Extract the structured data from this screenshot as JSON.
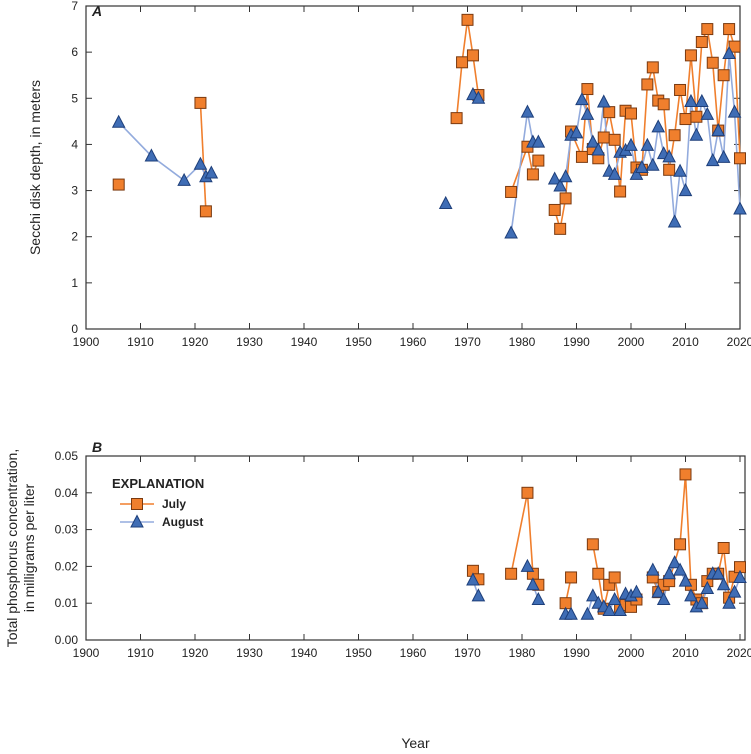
{
  "chart_data": [
    {
      "type": "line",
      "panel_label": "A",
      "ylabel": "Secchi disk depth, in meters",
      "xlabel": "",
      "xlim": [
        1900,
        2020
      ],
      "ylim": [
        0,
        7
      ],
      "xticks": [
        1900,
        1910,
        1920,
        1930,
        1940,
        1950,
        1960,
        1970,
        1980,
        1990,
        2000,
        2010,
        2020
      ],
      "yticks": [
        0,
        1,
        2,
        3,
        4,
        5,
        6,
        7
      ],
      "series": [
        {
          "name": "July",
          "color": "#F07F2D",
          "marker": "square",
          "segments": [
            [
              [
                1906,
                3.13
              ]
            ],
            [
              [
                1921,
                4.9
              ],
              [
                1922,
                2.55
              ]
            ],
            [
              [
                1968,
                4.57
              ],
              [
                1969,
                5.78
              ],
              [
                1970,
                6.7
              ],
              [
                1971,
                5.93
              ],
              [
                1972,
                5.07
              ]
            ],
            [
              [
                1978,
                2.97
              ],
              [
                1981,
                3.95
              ],
              [
                1982,
                3.35
              ],
              [
                1983,
                3.65
              ]
            ],
            [
              [
                1986,
                2.58
              ],
              [
                1987,
                2.17
              ],
              [
                1988,
                2.83
              ],
              [
                1989,
                4.28
              ],
              [
                1991,
                3.73
              ],
              [
                1992,
                5.2
              ],
              [
                1993,
                3.9
              ],
              [
                1994,
                3.7
              ],
              [
                1995,
                4.15
              ],
              [
                1996,
                4.7
              ],
              [
                1997,
                4.1
              ],
              [
                1998,
                2.98
              ],
              [
                1999,
                4.73
              ],
              [
                2000,
                4.67
              ],
              [
                2001,
                3.5
              ],
              [
                2002,
                3.45
              ],
              [
                2003,
                5.3
              ],
              [
                2004,
                5.67
              ],
              [
                2005,
                4.95
              ],
              [
                2006,
                4.87
              ],
              [
                2007,
                3.45
              ],
              [
                2008,
                4.2
              ],
              [
                2009,
                5.18
              ],
              [
                2010,
                4.55
              ],
              [
                2011,
                5.93
              ],
              [
                2012,
                4.6
              ],
              [
                2013,
                6.22
              ],
              [
                2014,
                6.5
              ],
              [
                2015,
                5.77
              ],
              [
                2016,
                4.3
              ],
              [
                2017,
                5.5
              ],
              [
                2018,
                6.5
              ],
              [
                2019,
                6.12
              ],
              [
                2020,
                3.7
              ]
            ]
          ]
        },
        {
          "name": "August",
          "color": "#3F6DB5",
          "marker": "triangle",
          "segments": [
            [
              [
                1906,
                4.48
              ],
              [
                1912,
                3.75
              ],
              [
                1918,
                3.22
              ],
              [
                1921,
                3.57
              ],
              [
                1922,
                3.3
              ],
              [
                1923,
                3.38
              ]
            ],
            [
              [
                1966,
                2.72
              ]
            ],
            [
              [
                1971,
                5.08
              ],
              [
                1972,
                5.0
              ]
            ],
            [
              [
                1978,
                2.08
              ],
              [
                1981,
                4.7
              ],
              [
                1982,
                4.05
              ],
              [
                1983,
                4.05
              ]
            ],
            [
              [
                1986,
                3.25
              ],
              [
                1987,
                3.1
              ],
              [
                1988,
                3.3
              ],
              [
                1989,
                4.2
              ],
              [
                1990,
                4.25
              ],
              [
                1991,
                4.97
              ],
              [
                1992,
                4.65
              ],
              [
                1993,
                4.05
              ],
              [
                1994,
                3.88
              ],
              [
                1995,
                4.92
              ],
              [
                1996,
                3.42
              ],
              [
                1997,
                3.35
              ],
              [
                1998,
                3.83
              ],
              [
                1999,
                3.87
              ],
              [
                2000,
                3.98
              ],
              [
                2001,
                3.35
              ],
              [
                2002,
                3.5
              ],
              [
                2003,
                3.98
              ],
              [
                2004,
                3.55
              ],
              [
                2005,
                4.38
              ],
              [
                2006,
                3.8
              ],
              [
                2007,
                3.73
              ],
              [
                2008,
                2.32
              ],
              [
                2009,
                3.42
              ],
              [
                2010,
                3.0
              ],
              [
                2011,
                4.93
              ],
              [
                2012,
                4.2
              ],
              [
                2013,
                4.93
              ],
              [
                2014,
                4.65
              ],
              [
                2015,
                3.65
              ],
              [
                2016,
                4.3
              ],
              [
                2017,
                3.72
              ],
              [
                2018,
                5.97
              ],
              [
                2019,
                4.7
              ],
              [
                2020,
                2.6
              ]
            ]
          ]
        }
      ]
    },
    {
      "type": "line",
      "panel_label": "B",
      "ylabel": "Total phosphorus concentration, in milligrams per liter",
      "ylabel_lines": [
        "Total phosphorus concentration,",
        "in milligrams per liter"
      ],
      "xlabel": "Year",
      "xlim": [
        1900,
        2022
      ],
      "ylim": [
        0,
        0.05
      ],
      "xticks": [
        1900,
        1910,
        1920,
        1930,
        1940,
        1950,
        1960,
        1970,
        1980,
        1990,
        2000,
        2010,
        2020
      ],
      "yticks": [
        "0.00",
        "0.01",
        "0.02",
        "0.03",
        "0.04",
        "0.05"
      ],
      "legend": {
        "title": "EXPLANATION",
        "placement": "top-left"
      },
      "series": [
        {
          "name": "July",
          "color": "#F07F2D",
          "marker": "square",
          "segments": [
            [
              [
                1971,
                0.0188
              ],
              [
                1972,
                0.0165
              ]
            ],
            [
              [
                1978,
                0.018
              ],
              [
                1981,
                0.04
              ],
              [
                1982,
                0.018
              ],
              [
                1983,
                0.015
              ]
            ],
            [
              [
                1988,
                0.01
              ],
              [
                1989,
                0.017
              ]
            ],
            [
              [
                1993,
                0.026
              ],
              [
                1994,
                0.018
              ],
              [
                1995,
                0.0085
              ],
              [
                1996,
                0.015
              ],
              [
                1997,
                0.017
              ],
              [
                1998,
                0.009
              ],
              [
                1999,
                0.0095
              ],
              [
                2000,
                0.009
              ],
              [
                2001,
                0.011
              ]
            ],
            [
              [
                2004,
                0.017
              ],
              [
                2005,
                0.013
              ],
              [
                2006,
                0.015
              ],
              [
                2007,
                0.016
              ],
              [
                2009,
                0.026
              ],
              [
                2010,
                0.045
              ],
              [
                2011,
                0.015
              ],
              [
                2012,
                0.011
              ],
              [
                2013,
                0.01
              ],
              [
                2014,
                0.016
              ],
              [
                2015,
                0.018
              ],
              [
                2016,
                0.018
              ],
              [
                2017,
                0.025
              ],
              [
                2018,
                0.0115
              ],
              [
                2019,
                0.0172
              ],
              [
                2020,
                0.0198
              ]
            ]
          ]
        },
        {
          "name": "August",
          "color": "#3F6DB5",
          "marker": "triangle",
          "segments": [
            [
              [
                1971,
                0.0163
              ],
              [
                1972,
                0.012
              ]
            ],
            [
              [
                1981,
                0.02
              ],
              [
                1982,
                0.015
              ],
              [
                1983,
                0.011
              ]
            ],
            [
              [
                1988,
                0.007
              ],
              [
                1989,
                0.007
              ]
            ],
            [
              [
                1992,
                0.007
              ],
              [
                1993,
                0.012
              ],
              [
                1994,
                0.01
              ],
              [
                1995,
                0.009
              ],
              [
                1996,
                0.008
              ],
              [
                1997,
                0.011
              ],
              [
                1998,
                0.008
              ],
              [
                1999,
                0.0125
              ],
              [
                2000,
                0.012
              ],
              [
                2001,
                0.013
              ]
            ],
            [
              [
                2004,
                0.019
              ],
              [
                2005,
                0.013
              ],
              [
                2006,
                0.011
              ],
              [
                2007,
                0.018
              ],
              [
                2008,
                0.021
              ],
              [
                2009,
                0.019
              ],
              [
                2010,
                0.016
              ],
              [
                2011,
                0.012
              ],
              [
                2012,
                0.009
              ],
              [
                2013,
                0.01
              ],
              [
                2014,
                0.014
              ],
              [
                2015,
                0.018
              ],
              [
                2016,
                0.018
              ],
              [
                2017,
                0.015
              ],
              [
                2018,
                0.01
              ],
              [
                2019,
                0.013
              ],
              [
                2020,
                0.017
              ]
            ]
          ]
        }
      ]
    }
  ]
}
